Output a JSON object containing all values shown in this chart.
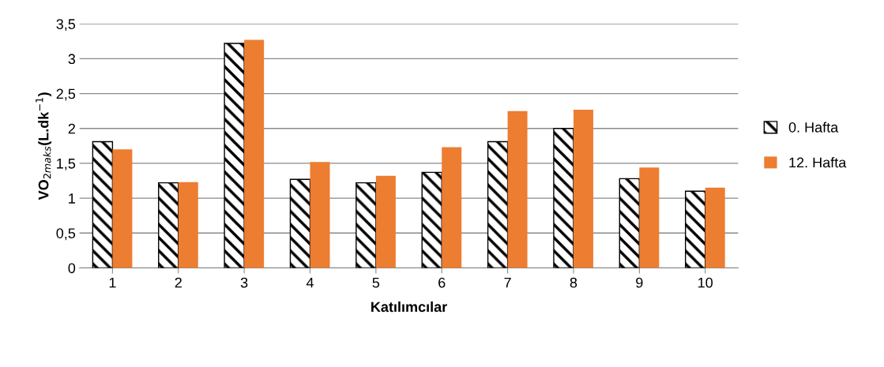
{
  "chart_data": {
    "type": "bar",
    "xlabel": "Katılımcılar",
    "ylabel": "VO$_{2maks}$(L.dk$^{−1}$)",
    "categories": [
      "1",
      "2",
      "3",
      "4",
      "5",
      "6",
      "7",
      "8",
      "9",
      "10"
    ],
    "series": [
      {
        "name": "0. Hafta",
        "color": "#000000",
        "values": [
          1.81,
          1.22,
          3.22,
          1.27,
          1.22,
          1.37,
          1.81,
          2.0,
          1.28,
          1.1
        ]
      },
      {
        "name": "12. Hafta",
        "color": "#ed7d31",
        "values": [
          1.7,
          1.23,
          3.27,
          1.52,
          1.32,
          1.73,
          2.25,
          2.27,
          1.44,
          1.15
        ]
      }
    ],
    "ylim": [
      0,
      3.5
    ],
    "yticks": [
      {
        "value": 0,
        "label": "0"
      },
      {
        "value": 0.5,
        "label": "0,5"
      },
      {
        "value": 1,
        "label": "1"
      },
      {
        "value": 1.5,
        "label": "1,5"
      },
      {
        "value": 2,
        "label": "2"
      },
      {
        "value": 2.5,
        "label": "2,5"
      },
      {
        "value": 3,
        "label": "3"
      },
      {
        "value": 3.5,
        "label": "3,5"
      }
    ],
    "grid": "y",
    "legend": "right"
  }
}
